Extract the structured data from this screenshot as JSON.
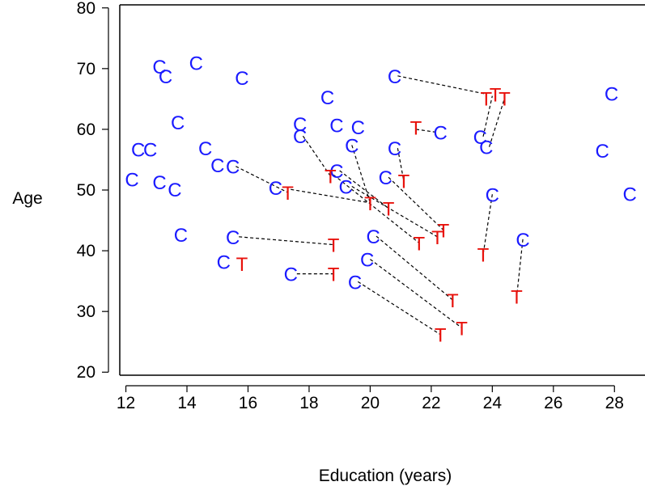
{
  "chart_data": {
    "type": "scatter",
    "xlabel": "Education (years)",
    "ylabel": "Age",
    "xlim": [
      11.8,
      29
    ],
    "ylim": [
      19.5,
      80.5
    ],
    "xticks": [
      12,
      14,
      16,
      18,
      20,
      22,
      24,
      26,
      28
    ],
    "yticks": [
      20,
      30,
      40,
      50,
      60,
      70,
      80
    ],
    "box": "left-bottom-top",
    "grid": false,
    "colors": {
      "control": "#1a1aff",
      "treated": "#e8120c",
      "pair_line": "#000000",
      "axis": "#000000"
    },
    "series": [
      {
        "marker": "C",
        "points": [
          {
            "x": 12.2,
            "y": 51.8
          },
          {
            "x": 12.4,
            "y": 56.7
          },
          {
            "x": 12.8,
            "y": 56.7
          },
          {
            "x": 13.1,
            "y": 70.4
          },
          {
            "x": 13.1,
            "y": 51.3
          },
          {
            "x": 13.3,
            "y": 68.8
          },
          {
            "x": 13.6,
            "y": 50.1
          },
          {
            "x": 13.7,
            "y": 61.2
          },
          {
            "x": 13.8,
            "y": 42.7
          },
          {
            "x": 14.3,
            "y": 71.0
          },
          {
            "x": 14.6,
            "y": 56.9
          },
          {
            "x": 15.0,
            "y": 54.1
          },
          {
            "x": 15.2,
            "y": 38.2
          },
          {
            "x": 15.5,
            "y": 53.9
          },
          {
            "x": 15.5,
            "y": 42.3
          },
          {
            "x": 15.8,
            "y": 68.5
          },
          {
            "x": 16.9,
            "y": 50.4
          },
          {
            "x": 17.4,
            "y": 36.2
          },
          {
            "x": 17.7,
            "y": 60.9
          },
          {
            "x": 17.7,
            "y": 58.9
          },
          {
            "x": 18.6,
            "y": 65.3
          },
          {
            "x": 18.9,
            "y": 60.7
          },
          {
            "x": 18.9,
            "y": 53.2
          },
          {
            "x": 19.2,
            "y": 50.6
          },
          {
            "x": 19.4,
            "y": 57.4
          },
          {
            "x": 19.6,
            "y": 60.4
          },
          {
            "x": 19.5,
            "y": 34.9
          },
          {
            "x": 19.9,
            "y": 38.6
          },
          {
            "x": 20.1,
            "y": 42.4
          },
          {
            "x": 20.5,
            "y": 52.1
          },
          {
            "x": 20.8,
            "y": 68.8
          },
          {
            "x": 20.8,
            "y": 56.9
          },
          {
            "x": 22.3,
            "y": 59.5
          },
          {
            "x": 23.6,
            "y": 58.8
          },
          {
            "x": 23.8,
            "y": 57.1
          },
          {
            "x": 24.0,
            "y": 49.3
          },
          {
            "x": 25.0,
            "y": 41.9
          },
          {
            "x": 27.6,
            "y": 56.5
          },
          {
            "x": 27.9,
            "y": 65.9
          },
          {
            "x": 28.5,
            "y": 49.4
          }
        ]
      },
      {
        "marker": "T",
        "points": [
          {
            "x": 15.8,
            "y": 37.9
          },
          {
            "x": 17.3,
            "y": 49.6
          },
          {
            "x": 18.7,
            "y": 52.3
          },
          {
            "x": 18.8,
            "y": 41.0
          },
          {
            "x": 18.8,
            "y": 36.2
          },
          {
            "x": 20.0,
            "y": 47.9
          },
          {
            "x": 20.6,
            "y": 47.0
          },
          {
            "x": 21.1,
            "y": 51.5
          },
          {
            "x": 21.5,
            "y": 60.3
          },
          {
            "x": 21.6,
            "y": 41.3
          },
          {
            "x": 22.2,
            "y": 42.3
          },
          {
            "x": 22.4,
            "y": 43.4
          },
          {
            "x": 22.3,
            "y": 26.2
          },
          {
            "x": 22.7,
            "y": 31.9
          },
          {
            "x": 23.0,
            "y": 27.3
          },
          {
            "x": 23.7,
            "y": 39.4
          },
          {
            "x": 23.8,
            "y": 65.1
          },
          {
            "x": 24.1,
            "y": 65.8
          },
          {
            "x": 24.4,
            "y": 65.1
          },
          {
            "x": 24.8,
            "y": 32.5
          }
        ]
      }
    ],
    "pairs": [
      {
        "from": [
          15.6,
          53.9
        ],
        "to": [
          17.3,
          49.6
        ]
      },
      {
        "from": [
          17.4,
          50.1
        ],
        "to": [
          20.0,
          47.9
        ]
      },
      {
        "from": [
          15.7,
          42.3
        ],
        "to": [
          18.8,
          41.0
        ]
      },
      {
        "from": [
          17.6,
          36.2
        ],
        "to": [
          18.8,
          36.2
        ]
      },
      {
        "from": [
          17.8,
          58.9
        ],
        "to": [
          18.7,
          52.3
        ]
      },
      {
        "from": [
          18.8,
          52.5
        ],
        "to": [
          21.6,
          41.3
        ]
      },
      {
        "from": [
          19.0,
          53.2
        ],
        "to": [
          20.6,
          47.0
        ]
      },
      {
        "from": [
          19.4,
          57.4
        ],
        "to": [
          20.0,
          47.9
        ]
      },
      {
        "from": [
          19.4,
          50.6
        ],
        "to": [
          22.2,
          42.3
        ]
      },
      {
        "from": [
          20.6,
          52.1
        ],
        "to": [
          22.4,
          43.4
        ]
      },
      {
        "from": [
          20.9,
          56.9
        ],
        "to": [
          21.1,
          51.5
        ]
      },
      {
        "from": [
          20.2,
          42.4
        ],
        "to": [
          22.7,
          31.9
        ]
      },
      {
        "from": [
          20.0,
          38.6
        ],
        "to": [
          23.0,
          27.3
        ]
      },
      {
        "from": [
          19.6,
          34.9
        ],
        "to": [
          22.3,
          26.2
        ]
      },
      {
        "from": [
          20.9,
          68.8
        ],
        "to": [
          23.8,
          65.8
        ]
      },
      {
        "from": [
          21.5,
          60.0
        ],
        "to": [
          22.2,
          59.5
        ]
      },
      {
        "from": [
          23.7,
          58.8
        ],
        "to": [
          24.0,
          65.5
        ]
      },
      {
        "from": [
          23.9,
          57.1
        ],
        "to": [
          24.4,
          65.1
        ]
      },
      {
        "from": [
          24.0,
          49.3
        ],
        "to": [
          23.7,
          39.4
        ]
      },
      {
        "from": [
          25.0,
          41.9
        ],
        "to": [
          24.8,
          32.5
        ]
      }
    ]
  }
}
